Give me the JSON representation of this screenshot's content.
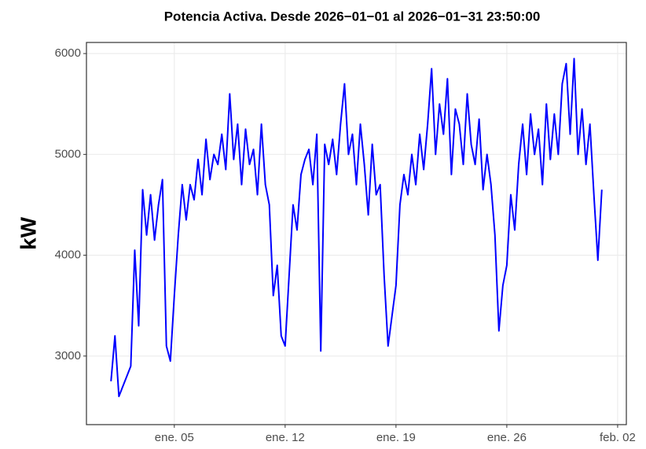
{
  "chart_data": {
    "type": "line",
    "title": "Potencia Activa. Desde  2026−01−01  al  2026−01−31 23:50:00",
    "y_label": "kW",
    "x": [
      1,
      1.25,
      1.5,
      1.75,
      2,
      2.25,
      2.5,
      2.75,
      3,
      3.25,
      3.5,
      3.75,
      4,
      4.25,
      4.5,
      4.75,
      5,
      5.25,
      5.5,
      5.75,
      6,
      6.25,
      6.5,
      6.75,
      7,
      7.25,
      7.5,
      7.75,
      8,
      8.25,
      8.5,
      8.75,
      9,
      9.25,
      9.5,
      9.75,
      10,
      10.25,
      10.5,
      10.75,
      11,
      11.25,
      11.5,
      11.75,
      12,
      12.25,
      12.5,
      12.75,
      13,
      13.25,
      13.5,
      13.75,
      14,
      14.25,
      14.5,
      14.75,
      15,
      15.25,
      15.5,
      15.75,
      16,
      16.25,
      16.5,
      16.75,
      17,
      17.25,
      17.5,
      17.75,
      18,
      18.25,
      18.5,
      18.75,
      19,
      19.25,
      19.5,
      19.75,
      20,
      20.25,
      20.5,
      20.75,
      21,
      21.25,
      21.5,
      21.75,
      22,
      22.25,
      22.5,
      22.75,
      23,
      23.25,
      23.5,
      23.75,
      24,
      24.25,
      24.5,
      24.75,
      25,
      25.25,
      25.5,
      25.75,
      26,
      26.25,
      26.5,
      26.75,
      27,
      27.25,
      27.5,
      27.75,
      28,
      28.25,
      28.5,
      28.75,
      29,
      29.25,
      29.5,
      29.75,
      30,
      30.25,
      30.5,
      30.75,
      31,
      31.25,
      31.5,
      31.75,
      32
    ],
    "series": [
      {
        "color": "#0000ff",
        "values": [
          2750,
          3200,
          2600,
          2700,
          2800,
          2900,
          4050,
          3300,
          4650,
          4200,
          4600,
          4150,
          4500,
          4750,
          3100,
          2950,
          3600,
          4200,
          4700,
          4350,
          4700,
          4550,
          4950,
          4600,
          5150,
          4750,
          5000,
          4900,
          5200,
          4850,
          5600,
          4950,
          5300,
          4700,
          5250,
          4900,
          5050,
          4600,
          5300,
          4700,
          4500,
          3600,
          3900,
          3200,
          3100,
          3800,
          4500,
          4250,
          4800,
          4950,
          5050,
          4700,
          5200,
          3050,
          5100,
          4900,
          5150,
          4800,
          5300,
          5700,
          5000,
          5200,
          4700,
          5300,
          4900,
          4400,
          5100,
          4600,
          4700,
          3800,
          3100,
          3400,
          3700,
          4500,
          4800,
          4600,
          5000,
          4700,
          5200,
          4850,
          5300,
          5850,
          5000,
          5500,
          5200,
          5750,
          4800,
          5450,
          5300,
          4900,
          5600,
          5100,
          4900,
          5350,
          4650,
          5000,
          4700,
          4200,
          3250,
          3700,
          3900,
          4600,
          4250,
          4900,
          5300,
          4800,
          5400,
          5000,
          5250,
          4700,
          5500,
          4950,
          5400,
          5000,
          5700,
          5900,
          5200,
          5950,
          5000,
          5450,
          4900,
          5300,
          4600,
          3950,
          4650
        ]
      }
    ],
    "xlim": [
      -0.55,
      33.55
    ],
    "xticks": [
      {
        "value": 5,
        "label": "ene. 05"
      },
      {
        "value": 12,
        "label": "ene. 12"
      },
      {
        "value": 19,
        "label": "ene. 19"
      },
      {
        "value": 26,
        "label": "ene. 26"
      },
      {
        "value": 33,
        "label": "feb. 02"
      }
    ],
    "ylim": [
      2320,
      6110
    ],
    "yticks": [
      3000,
      4000,
      5000,
      6000
    ],
    "grid": true
  }
}
